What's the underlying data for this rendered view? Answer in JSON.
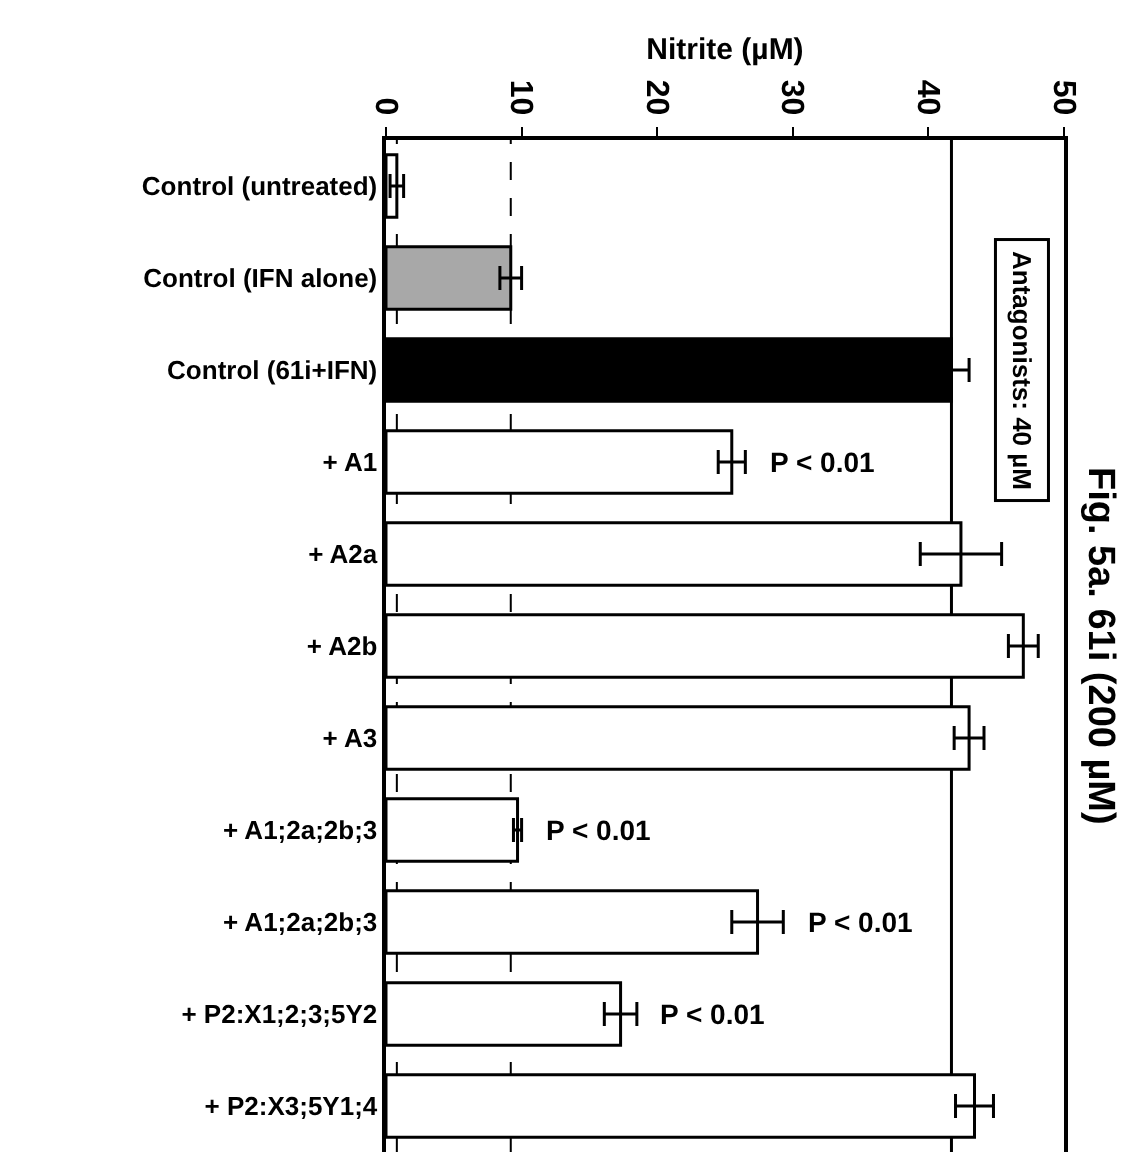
{
  "chart_data": {
    "type": "bar",
    "orientation": "horizontal",
    "title": "Fig. 5a. 61i (200 µM)",
    "xlabel": "Nitrite (µM)",
    "categories": [
      "Control (untreated)",
      "Control (IFN alone)",
      "Control (61i+IFN)",
      "+ A1",
      "+ A2a",
      "+ A2b",
      "+ A3",
      "+ A1;2a;2b;3",
      "+ A1;2a;2b;3",
      "+ P2:X1;2;3;5Y2",
      "+ P2:X3;5Y1;4"
    ],
    "values": [
      0.8,
      9.2,
      41.7,
      25.5,
      42.4,
      47.0,
      43.0,
      9.7,
      27.4,
      17.3,
      43.4
    ],
    "errors": [
      0.5,
      0.8,
      1.3,
      1.0,
      3.0,
      1.1,
      1.1,
      0.3,
      1.9,
      1.2,
      1.4
    ],
    "colors": [
      "#ffffff",
      "#a8a8a8",
      "#000000",
      "#ffffff",
      "#ffffff",
      "#ffffff",
      "#ffffff",
      "#ffffff",
      "#ffffff",
      "#ffffff",
      "#ffffff"
    ],
    "xlim": [
      0,
      50
    ],
    "xticks": [
      0,
      10,
      20,
      30,
      40,
      50
    ],
    "grid": false,
    "ref_lines": [
      {
        "axis": "x",
        "value": 0.8,
        "line_style": "dashed"
      },
      {
        "axis": "x",
        "value": 9.2,
        "line_style": "dashed"
      },
      {
        "axis": "x",
        "value": 41.7,
        "line_style": "solid"
      }
    ],
    "value_labels": [
      null,
      null,
      null,
      "P < 0.01",
      null,
      null,
      null,
      "P < 0.01",
      "P < 0.01",
      "P < 0.01",
      null
    ],
    "annotations": [
      "Antagonists: 40 µM"
    ]
  }
}
